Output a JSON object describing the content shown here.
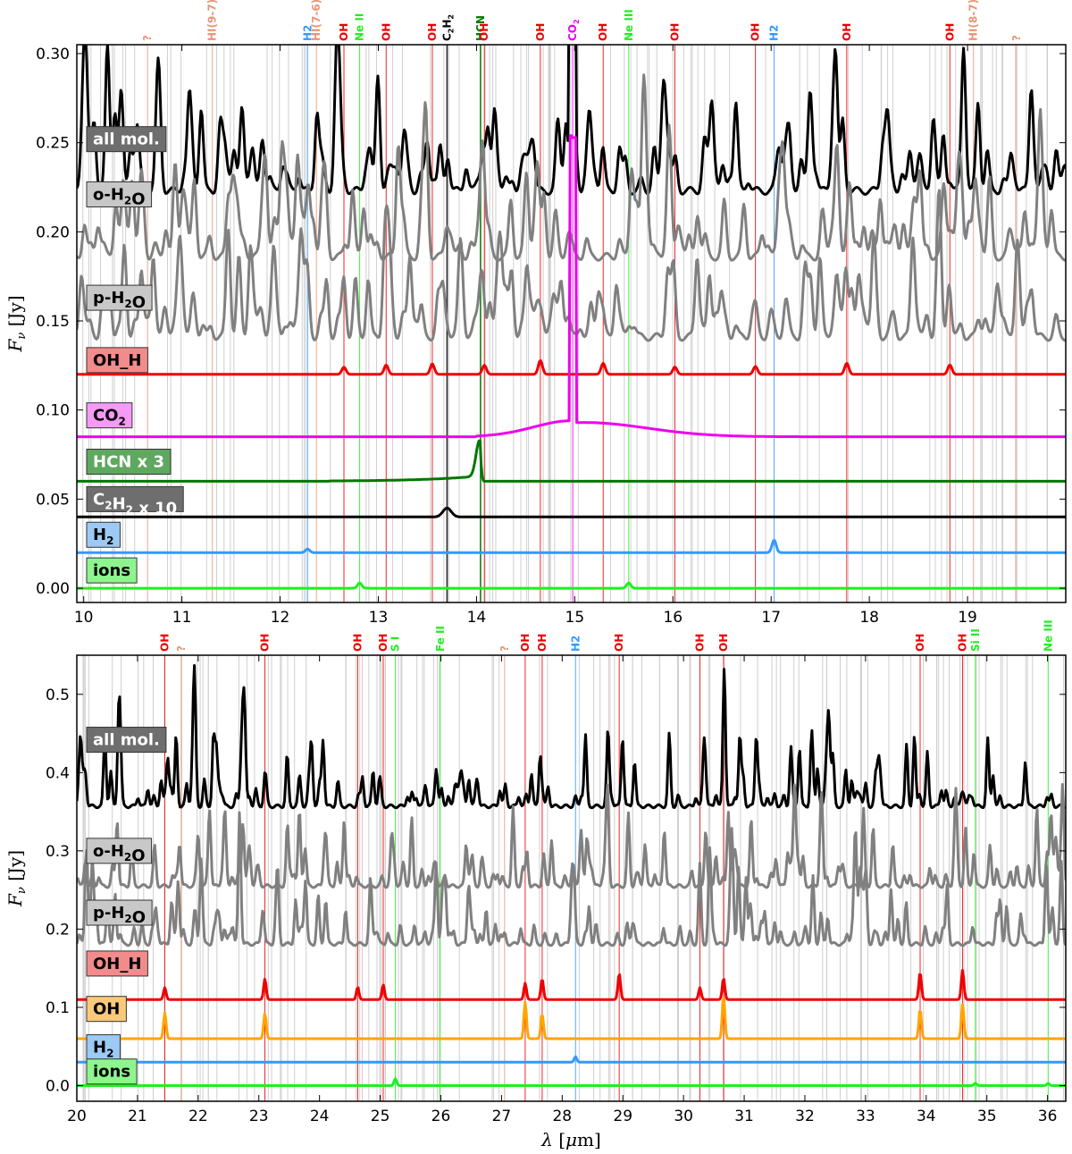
{
  "chart_data": [
    {
      "type": "line",
      "panel": "top",
      "xlim": [
        9.93,
        20.0
      ],
      "ylim": [
        -0.008,
        0.305
      ],
      "xticks": [
        10,
        11,
        12,
        13,
        14,
        15,
        16,
        17,
        18,
        19
      ],
      "yticks": [
        0.0,
        0.05,
        0.1,
        0.15,
        0.2,
        0.25,
        0.3
      ],
      "ytick_labels": [
        "0.00",
        "0.05",
        "0.10",
        "0.15",
        "0.20",
        "0.25",
        "0.30"
      ],
      "ylabel": "F_ν [Jy]",
      "xlabel": "",
      "grid": false,
      "line_ids": [
        {
          "label": "?",
          "x": 10.65,
          "color": "#e8967a"
        },
        {
          "label": "HI(9-7)",
          "x": 11.31,
          "color": "#e8967a"
        },
        {
          "label": "H2",
          "x": 12.28,
          "color": "#3399ff"
        },
        {
          "label": "HI(7-6)",
          "x": 12.37,
          "color": "#e8967a"
        },
        {
          "label": "OH",
          "x": 12.65,
          "color": "#ee0000"
        },
        {
          "label": "Ne II",
          "x": 12.81,
          "color": "#22ee22"
        },
        {
          "label": "OH",
          "x": 13.08,
          "color": "#ee0000"
        },
        {
          "label": "OH",
          "x": 13.55,
          "color": "#ee0000"
        },
        {
          "label": "C2H2",
          "x": 13.7,
          "color": "#000000"
        },
        {
          "label": "HCN",
          "x": 14.04,
          "color": "#007700"
        },
        {
          "label": "OH",
          "x": 14.08,
          "color": "#ee0000"
        },
        {
          "label": "OH",
          "x": 14.65,
          "color": "#ee0000"
        },
        {
          "label": "CO2",
          "x": 14.98,
          "color": "#ee00ee"
        },
        {
          "label": "OH",
          "x": 15.29,
          "color": "#ee0000"
        },
        {
          "label": "Ne III",
          "x": 15.55,
          "color": "#22ee22"
        },
        {
          "label": "OH",
          "x": 16.02,
          "color": "#ee0000"
        },
        {
          "label": "OH",
          "x": 16.84,
          "color": "#ee0000"
        },
        {
          "label": "H2",
          "x": 17.03,
          "color": "#3399ff"
        },
        {
          "label": "OH",
          "x": 17.77,
          "color": "#ee0000"
        },
        {
          "label": "OH",
          "x": 18.82,
          "color": "#ee0000"
        },
        {
          "label": "HI(8-7)",
          "x": 19.06,
          "color": "#e8967a"
        },
        {
          "label": "?",
          "x": 19.5,
          "color": "#e8967a"
        }
      ],
      "series": [
        {
          "name": "all mol.",
          "color": "#000000",
          "baseline": 0.223,
          "label_y": 0.252
        },
        {
          "name": "o-H2O",
          "color": "#808080",
          "baseline": 0.186,
          "label_y": 0.221
        },
        {
          "name": "p-H2O",
          "color": "#808080",
          "baseline": 0.141,
          "label_y": 0.163
        },
        {
          "name": "OH_H",
          "color": "#ee0000",
          "baseline": 0.12,
          "label_y": 0.128
        },
        {
          "name": "CO2",
          "color": "#ee00ee",
          "baseline": 0.085,
          "label_y": 0.097
        },
        {
          "name": "HCN x 3",
          "color": "#007700",
          "baseline": 0.06,
          "label_y": 0.071
        },
        {
          "name": "C2H2 x 10",
          "color": "#000000",
          "baseline": 0.04,
          "label_y": 0.05
        },
        {
          "name": "H2",
          "color": "#3399ff",
          "baseline": 0.02,
          "label_y": 0.03
        },
        {
          "name": "ions",
          "color": "#22ee22",
          "baseline": 0.0,
          "label_y": 0.01
        }
      ]
    },
    {
      "type": "line",
      "panel": "bottom",
      "xlim": [
        20.0,
        36.3
      ],
      "ylim": [
        -0.02,
        0.55
      ],
      "xticks": [
        20,
        21,
        22,
        23,
        24,
        25,
        26,
        27,
        28,
        29,
        30,
        31,
        32,
        33,
        34,
        35,
        36
      ],
      "yticks": [
        0.0,
        0.1,
        0.2,
        0.3,
        0.4,
        0.5
      ],
      "ytick_labels": [
        "0.0",
        "0.1",
        "0.2",
        "0.3",
        "0.4",
        "0.5"
      ],
      "ylabel": "F_ν [Jy]",
      "xlabel": "λ [μm]",
      "grid": false,
      "line_ids": [
        {
          "label": "OH",
          "x": 21.45,
          "color": "#ee0000"
        },
        {
          "label": "?",
          "x": 21.72,
          "color": "#e8967a"
        },
        {
          "label": "OH",
          "x": 23.1,
          "color": "#ee0000"
        },
        {
          "label": "OH",
          "x": 24.63,
          "color": "#ee0000"
        },
        {
          "label": "OH",
          "x": 25.05,
          "color": "#ee0000"
        },
        {
          "label": "S I",
          "x": 25.25,
          "color": "#22ee22"
        },
        {
          "label": "Fe II",
          "x": 25.99,
          "color": "#22ee22"
        },
        {
          "label": "?",
          "x": 27.05,
          "color": "#e8967a"
        },
        {
          "label": "OH",
          "x": 27.39,
          "color": "#ee0000"
        },
        {
          "label": "OH",
          "x": 27.67,
          "color": "#ee0000"
        },
        {
          "label": "H2",
          "x": 28.22,
          "color": "#3399ff"
        },
        {
          "label": "OH",
          "x": 28.94,
          "color": "#ee0000"
        },
        {
          "label": "OH",
          "x": 30.27,
          "color": "#ee0000"
        },
        {
          "label": "OH",
          "x": 30.66,
          "color": "#ee0000"
        },
        {
          "label": "OH",
          "x": 33.9,
          "color": "#ee0000"
        },
        {
          "label": "OH",
          "x": 34.6,
          "color": "#ee0000"
        },
        {
          "label": "Si II",
          "x": 34.81,
          "color": "#22ee22"
        },
        {
          "label": "Ne III",
          "x": 36.01,
          "color": "#22ee22"
        }
      ],
      "series": [
        {
          "name": "all mol.",
          "color": "#000000",
          "baseline": 0.357,
          "label_y": 0.442
        },
        {
          "name": "o-H2O",
          "color": "#808080",
          "baseline": 0.255,
          "label_y": 0.3
        },
        {
          "name": "p-H2O",
          "color": "#808080",
          "baseline": 0.181,
          "label_y": 0.221
        },
        {
          "name": "OH_H",
          "color": "#ee0000",
          "baseline": 0.11,
          "label_y": 0.156
        },
        {
          "name": "OH",
          "color": "#ffa500",
          "baseline": 0.06,
          "label_y": 0.098
        },
        {
          "name": "H2",
          "color": "#3399ff",
          "baseline": 0.03,
          "label_y": 0.049
        },
        {
          "name": "ions",
          "color": "#22ee22",
          "baseline": 0.0,
          "label_y": 0.018
        }
      ]
    }
  ]
}
